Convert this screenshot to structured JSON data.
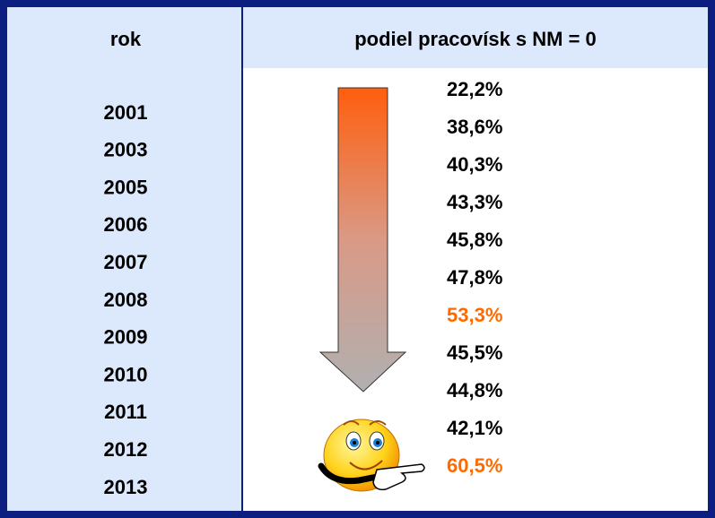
{
  "table": {
    "header": [
      "rok",
      "podiel pracovísk s NM = 0"
    ],
    "highlight_color": "#ff6a00",
    "rows": [
      {
        "year": "2001",
        "share": "22,2%",
        "highlight": false
      },
      {
        "year": "2003",
        "share": "38,6%",
        "highlight": false
      },
      {
        "year": "2005",
        "share": "40,3%",
        "highlight": false
      },
      {
        "year": "2006",
        "share": "43,3%",
        "highlight": false
      },
      {
        "year": "2007",
        "share": "45,8%",
        "highlight": false
      },
      {
        "year": "2008",
        "share": "47,8%",
        "highlight": false
      },
      {
        "year": "2009",
        "share": "53,3%",
        "highlight": true
      },
      {
        "year": "2010",
        "share": "45,5%",
        "highlight": false
      },
      {
        "year": "2011",
        "share": "44,8%",
        "highlight": false
      },
      {
        "year": "2012",
        "share": "42,1%",
        "highlight": false
      },
      {
        "year": "2013",
        "share": "60,5%",
        "highlight": true
      }
    ]
  }
}
